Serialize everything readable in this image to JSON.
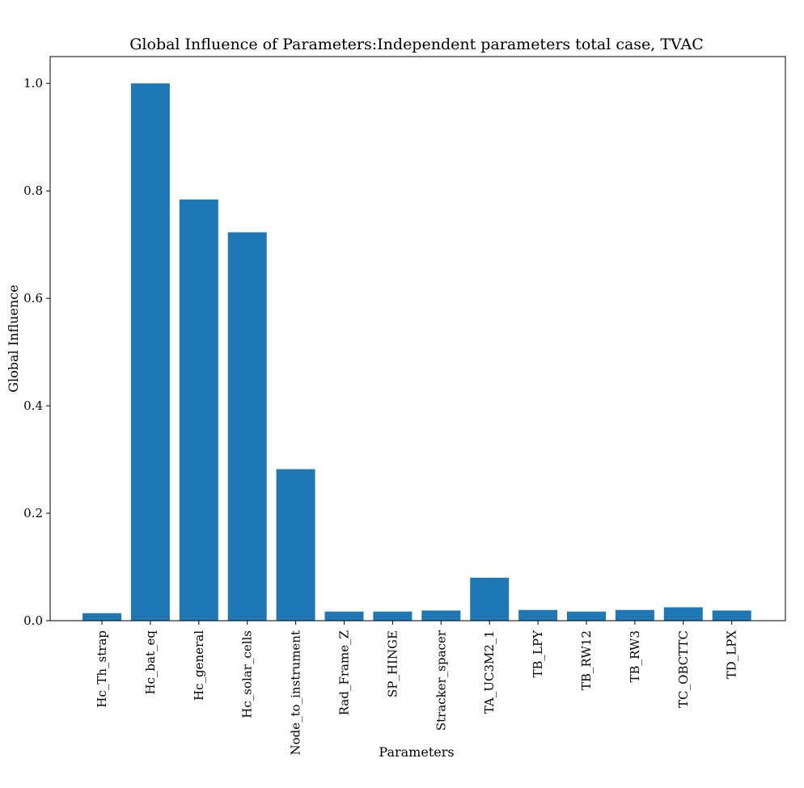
{
  "chart_data": {
    "type": "bar",
    "title": "Global Influence of Parameters:Independent parameters total case, TVAC",
    "xlabel": "Parameters",
    "ylabel": "Global Influence",
    "categories": [
      "Hc_Th_strap",
      "Hc_bat_eq",
      "Hc_general",
      "Hc_solar_cells",
      "Node_to_instrument",
      "Rad_Frame_Z",
      "SP_HINGE",
      "Stracker_spacer",
      "TA_UC3M2_1",
      "TB_LPY",
      "TB_RW12",
      "TB_RW3",
      "TC_OBCTTC",
      "TD_LPX"
    ],
    "values": [
      0.014,
      1.0,
      0.784,
      0.723,
      0.282,
      0.017,
      0.017,
      0.019,
      0.08,
      0.02,
      0.017,
      0.02,
      0.025,
      0.019
    ],
    "ylim": [
      0,
      1.05
    ],
    "yticks": [
      "0.0",
      "0.2",
      "0.4",
      "0.6",
      "0.8",
      "1.0"
    ],
    "grid": false,
    "bar_color": "#1f77b4"
  }
}
